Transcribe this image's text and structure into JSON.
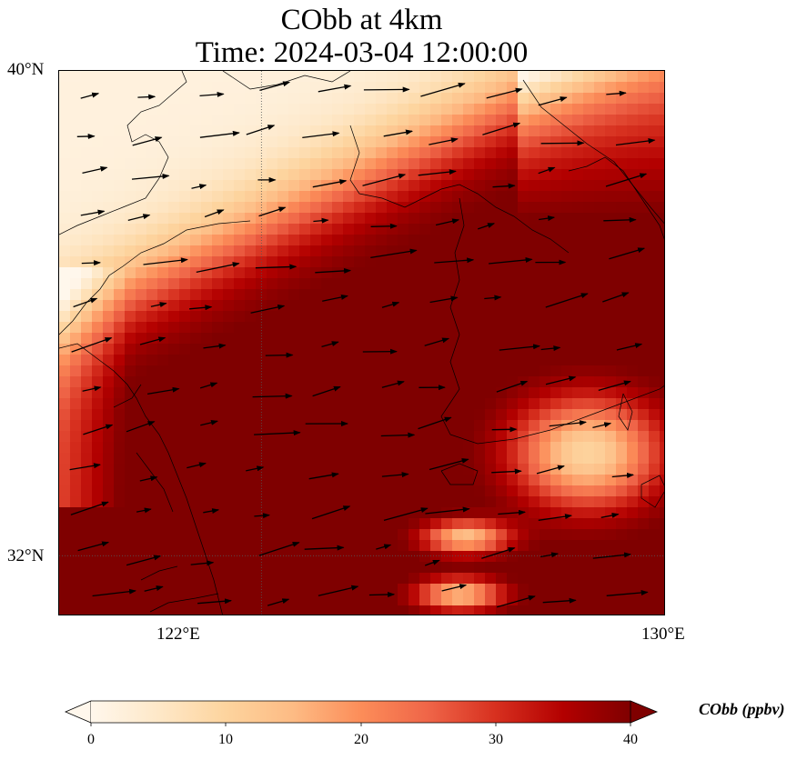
{
  "title": {
    "line1": "CObb at 4km",
    "line2": "Time: 2024-03-04 12:00:00"
  },
  "map": {
    "lon_range": [
      118,
      130
    ],
    "lat_range": [
      31,
      40
    ],
    "lat_ticks": [
      {
        "value": 40,
        "label": "40°N"
      },
      {
        "value": 32,
        "label": "32°N"
      }
    ],
    "lon_ticks": [
      {
        "value": 122,
        "label": "122°E"
      },
      {
        "value": 130,
        "label": "130°E"
      }
    ],
    "gridlines": "dotted",
    "variable": "CObb",
    "vectors": "wind arrows, mostly westerly"
  },
  "colorbar": {
    "label": "CObb (ppbv)",
    "min": 0,
    "max": 40,
    "ticks": [
      "0",
      "10",
      "20",
      "30",
      "40"
    ],
    "colormap": "OrRd",
    "extend": "both",
    "colors": [
      "#fff7ec",
      "#fee8c8",
      "#fdd49e",
      "#fdbb84",
      "#fc8d59",
      "#ef6548",
      "#d7301f",
      "#b30000",
      "#7f0000"
    ]
  }
}
